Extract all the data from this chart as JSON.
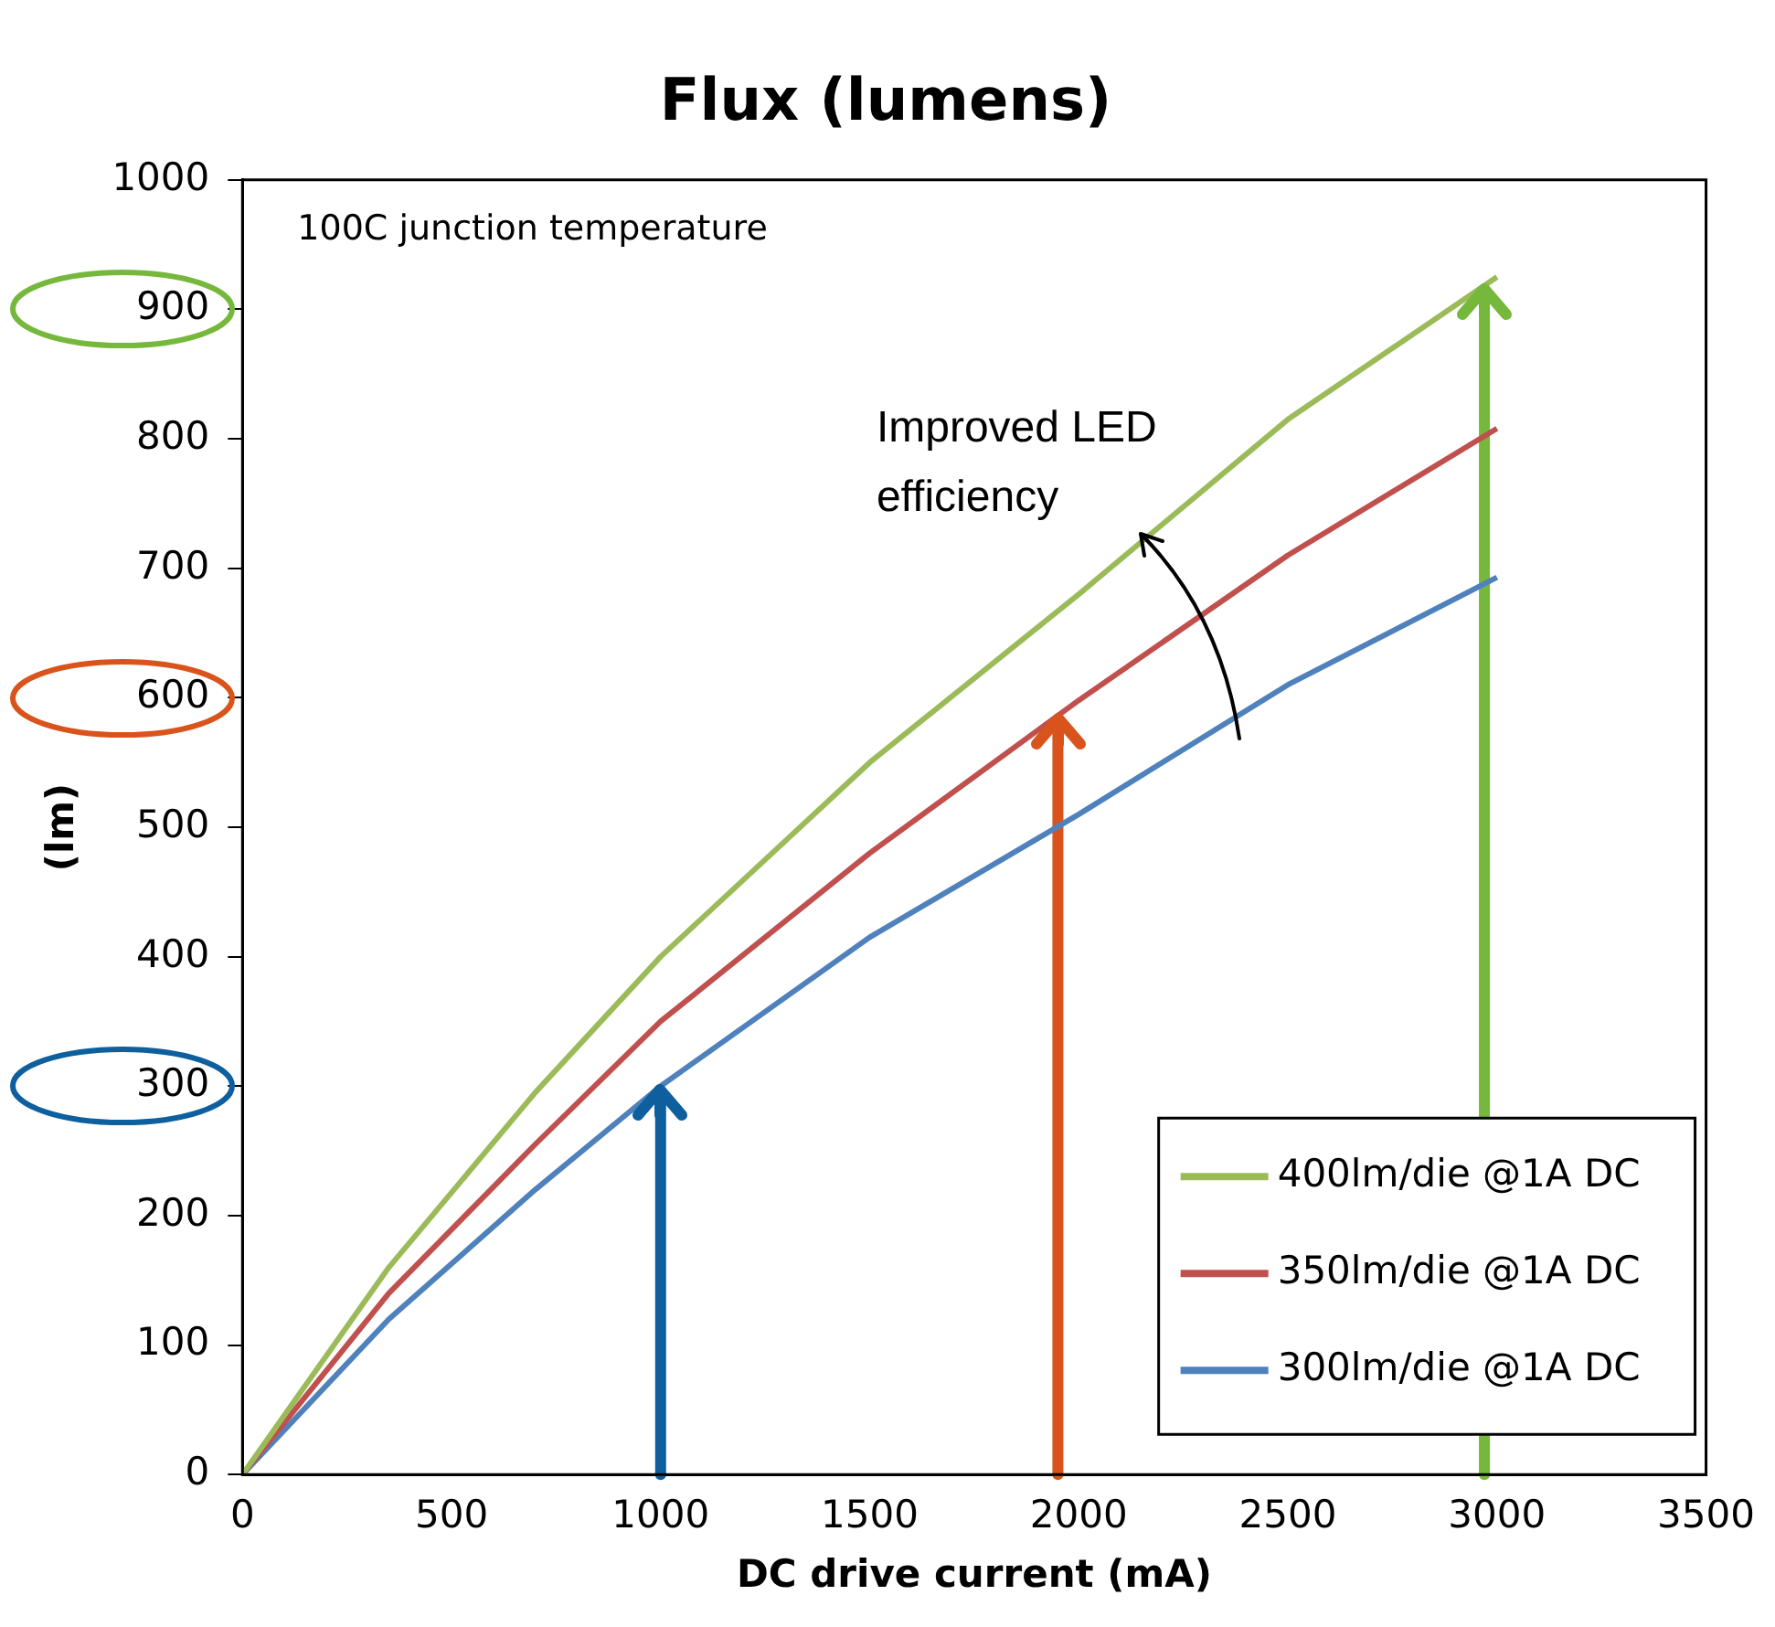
{
  "chart_data": {
    "type": "line",
    "title": "Flux (lumens)",
    "xlabel": "DC drive current (mA)",
    "ylabel": "(lm)",
    "x": [
      0,
      350,
      700,
      1000,
      1500,
      2000,
      2500,
      3000
    ],
    "series": [
      {
        "name": "400lm/die @1A DC",
        "color": "#9bbb59",
        "values": [
          0,
          160,
          295,
          400,
          550,
          680,
          815,
          925
        ]
      },
      {
        "name": "350lm/die @1A DC",
        "color": "#c0504d",
        "values": [
          0,
          140,
          255,
          350,
          480,
          598,
          710,
          808
        ]
      },
      {
        "name": "300lm/die @1A DC",
        "color": "#4f81bd",
        "values": [
          0,
          120,
          220,
          300,
          415,
          510,
          610,
          693
        ]
      }
    ],
    "xlim": [
      0,
      3500
    ],
    "xticks": [
      0,
      500,
      1000,
      1500,
      2000,
      2500,
      3000,
      3500
    ],
    "ylim": [
      0,
      1000
    ],
    "yticks": [
      0,
      100,
      200,
      300,
      400,
      500,
      600,
      700,
      800,
      900,
      1000
    ],
    "ref_lines": [
      {
        "axis": "x",
        "value": 1000,
        "color": "#0e5f9e"
      },
      {
        "axis": "x",
        "value": 1950,
        "color": "#d9541c"
      },
      {
        "axis": "x",
        "value": 2970,
        "color": "#76b83c"
      }
    ],
    "legend": "bottom right",
    "marker": "none",
    "line_style": "solid",
    "annotations": [
      "100C junction temperature",
      {
        "text": "Improved LED efficiency",
        "x": 2150,
        "y": 730
      }
    ]
  }
}
